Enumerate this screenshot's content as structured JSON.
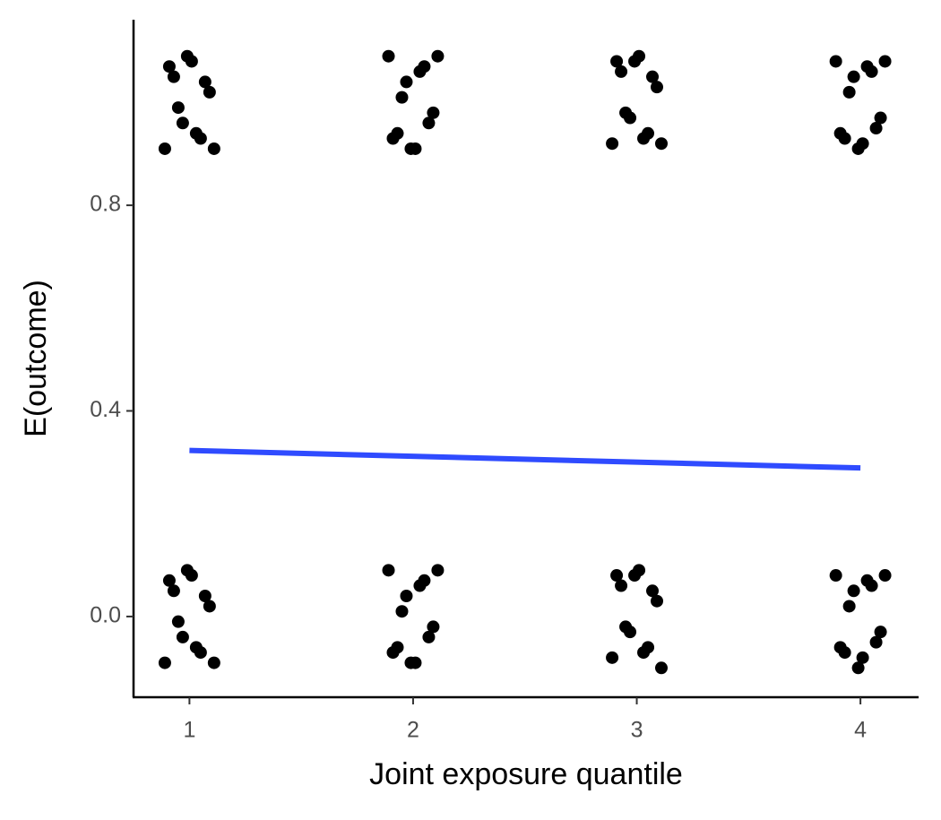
{
  "chart_data": {
    "type": "scatter",
    "x_label": "Joint exposure quantile",
    "y_label": "E(outcome)",
    "xlim": [
      0.75,
      4.26
    ],
    "ylim": [
      -0.157,
      1.161
    ],
    "xticks": [
      1,
      2,
      3,
      4
    ],
    "yticks": [
      {
        "value": 0,
        "label": "0.0"
      },
      0.4,
      0.8
    ],
    "grid": false,
    "series": [
      {
        "type": "scatter",
        "color": "#000000",
        "x": [
          0.89,
          0.93,
          0.97,
          1.01,
          1.05,
          1.09,
          0.91,
          0.95,
          0.99,
          1.03,
          1.07,
          1.11,
          0.89,
          0.93,
          0.97,
          1.01,
          1.05,
          1.09,
          0.91,
          0.95,
          0.99,
          1.03,
          1.07,
          1.11,
          1.89,
          1.93,
          1.97,
          2.01,
          2.05,
          2.09,
          1.91,
          1.95,
          1.99,
          2.03,
          2.07,
          2.11,
          1.89,
          1.93,
          1.97,
          2.01,
          2.05,
          2.09,
          1.91,
          1.95,
          1.99,
          2.03,
          2.07,
          2.11,
          2.89,
          2.93,
          2.97,
          3.01,
          3.05,
          3.09,
          2.91,
          2.95,
          2.99,
          3.03,
          3.07,
          3.11,
          2.89,
          2.93,
          2.97,
          3.01,
          3.05,
          3.09,
          2.91,
          2.95,
          2.99,
          3.03,
          3.07,
          3.11,
          3.89,
          3.93,
          3.97,
          4.01,
          4.05,
          4.09,
          3.91,
          3.95,
          3.99,
          4.03,
          4.07,
          4.11,
          3.89,
          3.93,
          3.97,
          4.01,
          4.05,
          4.09,
          3.91,
          3.95,
          3.99,
          4.03,
          4.07,
          4.11
        ],
        "y": [
          -0.09,
          0.05,
          -0.04,
          0.08,
          -0.07,
          0.02,
          0.07,
          -0.01,
          0.09,
          -0.06,
          0.04,
          -0.09,
          0.91,
          1.05,
          0.96,
          1.08,
          0.93,
          1.02,
          1.07,
          0.99,
          1.09,
          0.94,
          1.04,
          0.91,
          0.09,
          -0.06,
          0.04,
          -0.09,
          0.07,
          -0.02,
          -0.07,
          0.01,
          -0.09,
          0.06,
          -0.04,
          0.09,
          1.09,
          0.94,
          1.04,
          0.91,
          1.07,
          0.98,
          0.93,
          1.01,
          0.91,
          1.06,
          0.96,
          1.09,
          -0.08,
          0.06,
          -0.03,
          0.09,
          -0.06,
          0.03,
          0.08,
          -0.02,
          0.08,
          -0.07,
          0.05,
          -0.1,
          0.92,
          1.06,
          0.97,
          1.09,
          0.94,
          1.03,
          1.08,
          0.98,
          1.08,
          0.93,
          1.05,
          0.92,
          0.08,
          -0.07,
          0.05,
          -0.08,
          0.06,
          -0.03,
          -0.06,
          0.02,
          -0.1,
          0.07,
          -0.05,
          0.08,
          1.08,
          0.93,
          1.05,
          0.92,
          1.06,
          0.97,
          0.94,
          1.02,
          0.91,
          1.07,
          0.95,
          1.08
        ]
      },
      {
        "type": "line",
        "color": "#2f4bff",
        "x": [
          1,
          4
        ],
        "y": [
          0.323,
          0.289
        ]
      }
    ]
  }
}
